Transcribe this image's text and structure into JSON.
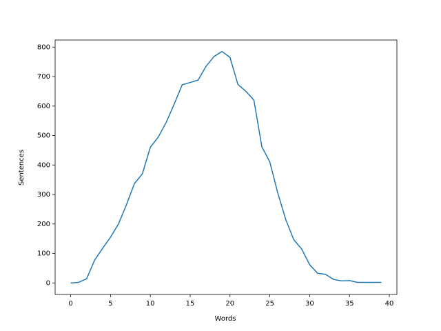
{
  "chart_data": {
    "type": "line",
    "x_label": "Words",
    "y_label": "Sentences",
    "x": [
      0,
      1,
      2,
      3,
      4,
      5,
      6,
      7,
      8,
      9,
      10,
      11,
      12,
      13,
      14,
      15,
      16,
      17,
      18,
      19,
      20,
      21,
      22,
      23,
      24,
      25,
      26,
      27,
      28,
      29,
      30,
      31,
      32,
      33,
      34,
      35,
      36,
      37,
      38,
      39
    ],
    "series": [
      {
        "color": "#1f77b4",
        "values": [
          0,
          2,
          14,
          77,
          117,
          155,
          200,
          265,
          337,
          370,
          460,
          495,
          545,
          607,
          672,
          680,
          688,
          735,
          768,
          785,
          765,
          673,
          650,
          620,
          462,
          410,
          305,
          215,
          147,
          115,
          62,
          33,
          29,
          12,
          7,
          8,
          2,
          2,
          2,
          2
        ]
      }
    ],
    "xlim": [
      -1.95,
      40.95
    ],
    "xticks": [
      0,
      5,
      10,
      15,
      20,
      25,
      30,
      35,
      40
    ],
    "ylim": [
      -39,
      824
    ],
    "yticks": [
      0,
      100,
      200,
      300,
      400,
      500,
      600,
      700,
      800
    ]
  }
}
